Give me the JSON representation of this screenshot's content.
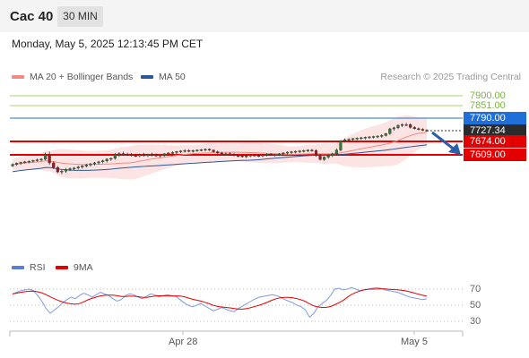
{
  "header": {
    "symbol": "Cac 40",
    "timeframe": "30 MIN"
  },
  "datetime": "Monday, May 5, 2025 12:13:45 PM CET",
  "legend": {
    "ma20": {
      "label": "MA 20 + Bollinger Bands",
      "color": "#f28b82"
    },
    "ma50": {
      "label": "MA 50",
      "color": "#2b5797"
    }
  },
  "credit": "Research © 2025 Trading Central",
  "levels": {
    "r2": {
      "label": "7900.00",
      "value": 7900.0,
      "color": "#7cb342"
    },
    "r1": {
      "label": "7851.00",
      "value": 7851.0,
      "color": "#7cb342"
    },
    "pivot": {
      "label": "7790.00",
      "value": 7790.0,
      "color": "#1e6fd9"
    },
    "last": {
      "label": "7727.34",
      "value": 7727.34,
      "color": "#222222"
    },
    "s1": {
      "label": "7674.00",
      "value": 7674.0,
      "color": "#e30000"
    },
    "s2": {
      "label": "7609.00",
      "value": 7609.0,
      "color": "#e30000"
    }
  },
  "rsi_legend": {
    "rsi": {
      "label": "RSI",
      "color": "#5b7fd8"
    },
    "ma": {
      "label": "9MA",
      "color": "#e30000"
    }
  },
  "rsi_levels": [
    "70",
    "50",
    "30"
  ],
  "x_labels": [
    "Apr 28",
    "May 5"
  ],
  "chart_data": {
    "type": "candlestick",
    "price_range": [
      7340,
      7920
    ],
    "ohlc": [
      [
        7555,
        7568,
        7550,
        7562
      ],
      [
        7562,
        7572,
        7556,
        7568
      ],
      [
        7568,
        7576,
        7560,
        7572
      ],
      [
        7572,
        7580,
        7566,
        7575
      ],
      [
        7575,
        7582,
        7568,
        7578
      ],
      [
        7578,
        7586,
        7572,
        7582
      ],
      [
        7582,
        7590,
        7576,
        7585
      ],
      [
        7585,
        7592,
        7578,
        7588
      ],
      [
        7588,
        7620,
        7582,
        7610
      ],
      [
        7610,
        7625,
        7560,
        7570
      ],
      [
        7570,
        7578,
        7540,
        7548
      ],
      [
        7548,
        7555,
        7520,
        7526
      ],
      [
        7526,
        7535,
        7515,
        7530
      ],
      [
        7530,
        7545,
        7522,
        7538
      ],
      [
        7538,
        7548,
        7530,
        7542
      ],
      [
        7542,
        7550,
        7534,
        7545
      ],
      [
        7545,
        7556,
        7538,
        7550
      ],
      [
        7550,
        7560,
        7542,
        7555
      ],
      [
        7555,
        7566,
        7548,
        7560
      ],
      [
        7560,
        7570,
        7552,
        7565
      ],
      [
        7565,
        7575,
        7558,
        7570
      ],
      [
        7570,
        7580,
        7562,
        7575
      ],
      [
        7575,
        7585,
        7568,
        7580
      ],
      [
        7580,
        7592,
        7572,
        7588
      ],
      [
        7588,
        7596,
        7580,
        7592
      ],
      [
        7592,
        7618,
        7586,
        7612
      ],
      [
        7612,
        7622,
        7600,
        7615
      ],
      [
        7615,
        7624,
        7605,
        7612
      ],
      [
        7612,
        7620,
        7604,
        7610
      ],
      [
        7610,
        7618,
        7600,
        7606
      ],
      [
        7606,
        7614,
        7598,
        7604
      ],
      [
        7604,
        7615,
        7598,
        7610
      ],
      [
        7610,
        7618,
        7600,
        7605
      ],
      [
        7605,
        7615,
        7598,
        7612
      ],
      [
        7612,
        7620,
        7602,
        7608
      ],
      [
        7608,
        7616,
        7600,
        7604
      ],
      [
        7604,
        7612,
        7596,
        7608
      ],
      [
        7608,
        7618,
        7600,
        7614
      ],
      [
        7614,
        7622,
        7606,
        7618
      ],
      [
        7618,
        7626,
        7610,
        7620
      ],
      [
        7620,
        7628,
        7612,
        7625
      ],
      [
        7625,
        7632,
        7618,
        7628
      ],
      [
        7628,
        7636,
        7620,
        7630
      ],
      [
        7630,
        7636,
        7622,
        7628
      ],
      [
        7628,
        7634,
        7620,
        7630
      ],
      [
        7630,
        7636,
        7624,
        7632
      ],
      [
        7632,
        7638,
        7626,
        7634
      ],
      [
        7634,
        7640,
        7626,
        7636
      ],
      [
        7636,
        7640,
        7628,
        7632
      ],
      [
        7632,
        7636,
        7620,
        7624
      ],
      [
        7624,
        7630,
        7612,
        7618
      ],
      [
        7618,
        7624,
        7608,
        7612
      ],
      [
        7612,
        7620,
        7606,
        7615
      ],
      [
        7615,
        7622,
        7608,
        7612
      ],
      [
        7612,
        7618,
        7602,
        7606
      ],
      [
        7606,
        7612,
        7598,
        7604
      ],
      [
        7604,
        7610,
        7596,
        7600
      ],
      [
        7600,
        7608,
        7594,
        7604
      ],
      [
        7604,
        7612,
        7598,
        7608
      ],
      [
        7608,
        7614,
        7600,
        7606
      ],
      [
        7606,
        7612,
        7598,
        7604
      ],
      [
        7604,
        7612,
        7598,
        7608
      ],
      [
        7608,
        7616,
        7602,
        7612
      ],
      [
        7612,
        7618,
        7604,
        7608
      ],
      [
        7608,
        7614,
        7600,
        7610
      ],
      [
        7610,
        7618,
        7604,
        7614
      ],
      [
        7614,
        7622,
        7606,
        7618
      ],
      [
        7618,
        7626,
        7610,
        7622
      ],
      [
        7622,
        7628,
        7614,
        7624
      ],
      [
        7624,
        7630,
        7616,
        7626
      ],
      [
        7626,
        7632,
        7618,
        7628
      ],
      [
        7628,
        7634,
        7620,
        7630
      ],
      [
        7630,
        7636,
        7622,
        7632
      ],
      [
        7632,
        7638,
        7624,
        7630
      ],
      [
        7630,
        7636,
        7600,
        7605
      ],
      [
        7605,
        7612,
        7582,
        7586
      ],
      [
        7586,
        7602,
        7580,
        7598
      ],
      [
        7598,
        7610,
        7590,
        7606
      ],
      [
        7606,
        7620,
        7598,
        7614
      ],
      [
        7614,
        7640,
        7608,
        7632
      ],
      [
        7632,
        7680,
        7626,
        7676
      ],
      [
        7676,
        7688,
        7668,
        7682
      ],
      [
        7682,
        7690,
        7674,
        7684
      ],
      [
        7684,
        7690,
        7676,
        7688
      ],
      [
        7688,
        7694,
        7680,
        7690
      ],
      [
        7690,
        7696,
        7682,
        7692
      ],
      [
        7692,
        7698,
        7684,
        7694
      ],
      [
        7694,
        7700,
        7686,
        7696
      ],
      [
        7696,
        7702,
        7688,
        7698
      ],
      [
        7698,
        7704,
        7690,
        7700
      ],
      [
        7700,
        7708,
        7692,
        7703
      ],
      [
        7703,
        7715,
        7698,
        7712
      ],
      [
        7712,
        7740,
        7706,
        7735
      ],
      [
        7735,
        7745,
        7726,
        7740
      ],
      [
        7740,
        7758,
        7734,
        7752
      ],
      [
        7752,
        7762,
        7744,
        7756
      ],
      [
        7756,
        7764,
        7748,
        7756
      ],
      [
        7756,
        7762,
        7736,
        7742
      ],
      [
        7742,
        7748,
        7732,
        7736
      ],
      [
        7736,
        7742,
        7728,
        7733
      ],
      [
        7733,
        7738,
        7724,
        7728
      ],
      [
        7728,
        7734,
        7722,
        7727
      ]
    ],
    "rsi": [
      64,
      66,
      68,
      69,
      70,
      68,
      62,
      55,
      46,
      40,
      44,
      48,
      53,
      57,
      60,
      58,
      62,
      65,
      63,
      60,
      63,
      66,
      64,
      62,
      58,
      55,
      57,
      62,
      64,
      63,
      60,
      58,
      61,
      64,
      63,
      60,
      62,
      63,
      62,
      61,
      57,
      53,
      50,
      48,
      50,
      52,
      49,
      46,
      43,
      45,
      47,
      45,
      43,
      42,
      46,
      49,
      52,
      55,
      58,
      60,
      61,
      62,
      63,
      62,
      60,
      57,
      55,
      53,
      50,
      48,
      44,
      35,
      40,
      48,
      52,
      56,
      62,
      70,
      71,
      69,
      70,
      72,
      70,
      68,
      69,
      70,
      71,
      72,
      71,
      69,
      68,
      67,
      66,
      64,
      62,
      60,
      59,
      58,
      57,
      58
    ]
  }
}
